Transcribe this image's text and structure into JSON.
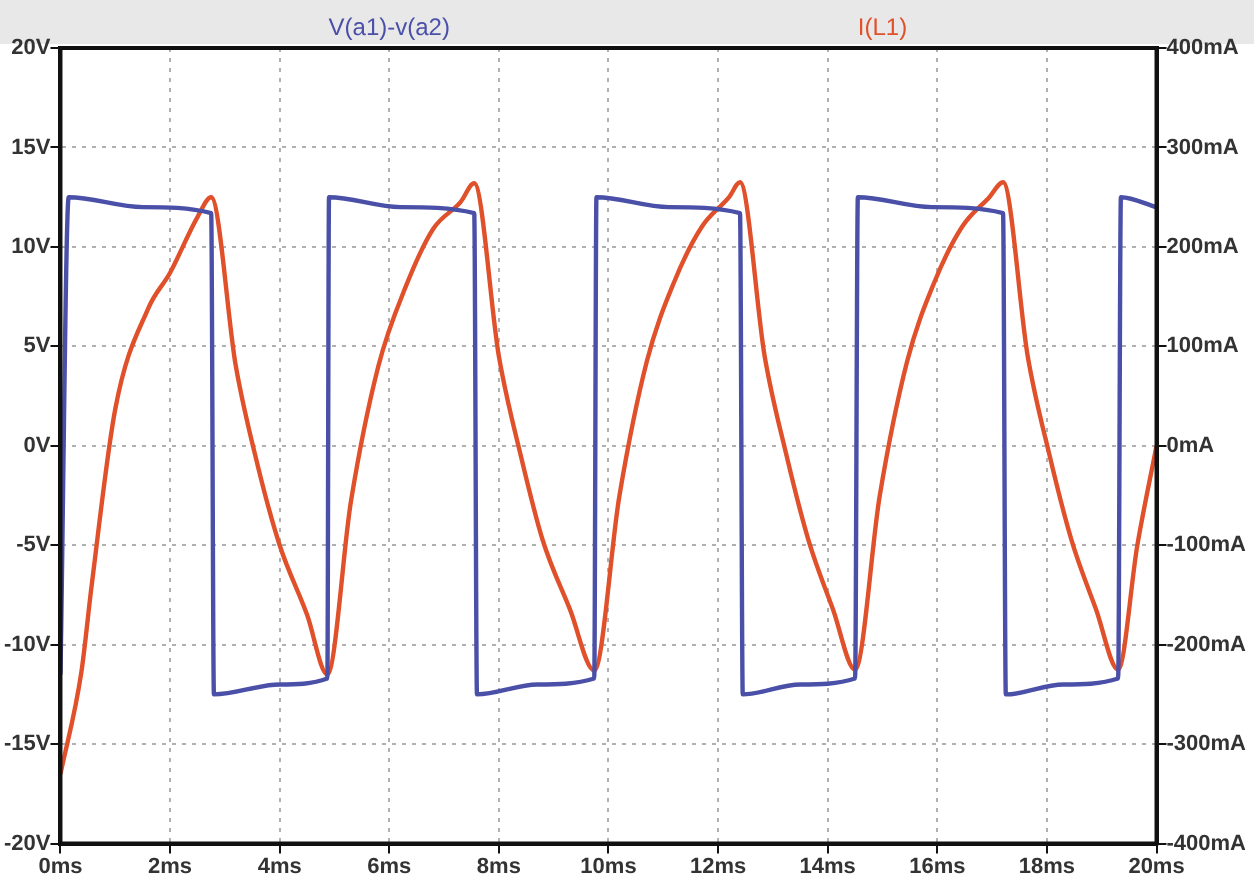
{
  "chart_data": {
    "type": "line",
    "xlim": [
      0,
      20
    ],
    "xticks": [
      {
        "value": 0,
        "label": "0ms"
      },
      {
        "value": 2,
        "label": "2ms"
      },
      {
        "value": 4,
        "label": "4ms"
      },
      {
        "value": 6,
        "label": "6ms"
      },
      {
        "value": 8,
        "label": "8ms"
      },
      {
        "value": 10,
        "label": "10ms"
      },
      {
        "value": 12,
        "label": "12ms"
      },
      {
        "value": 14,
        "label": "14ms"
      },
      {
        "value": 16,
        "label": "16ms"
      },
      {
        "value": 18,
        "label": "18ms"
      },
      {
        "value": 20,
        "label": "20ms"
      }
    ],
    "ylim": [
      -20,
      20
    ],
    "yticks": [
      {
        "value": -20,
        "label": "-20V"
      },
      {
        "value": -15,
        "label": "-15V"
      },
      {
        "value": -10,
        "label": "-10V"
      },
      {
        "value": -5,
        "label": "-5V"
      },
      {
        "value": 0,
        "label": "0V"
      },
      {
        "value": 5,
        "label": "5V"
      },
      {
        "value": 10,
        "label": "10V"
      },
      {
        "value": 15,
        "label": "15V"
      },
      {
        "value": 20,
        "label": "20V"
      }
    ],
    "y2lim": [
      -400,
      400
    ],
    "y2ticks": [
      {
        "value": -400,
        "label": "-400mA"
      },
      {
        "value": -300,
        "label": "-300mA"
      },
      {
        "value": -200,
        "label": "-200mA"
      },
      {
        "value": -100,
        "label": "-100mA"
      },
      {
        "value": 0,
        "label": "0mA"
      },
      {
        "value": 100,
        "label": "100mA"
      },
      {
        "value": 200,
        "label": "200mA"
      },
      {
        "value": 300,
        "label": "300mA"
      },
      {
        "value": 400,
        "label": "400mA"
      }
    ],
    "grid": true,
    "legend": "top",
    "marker": "none",
    "line_style": "solid",
    "series": [
      {
        "name": "V(a1)-v(a2)",
        "color": "#4a50a8",
        "x": [
          0,
          0.15,
          1.5,
          2.75,
          2.8,
          4.0,
          4.87,
          4.9,
          6.2,
          7.55,
          7.6,
          8.7,
          9.74,
          9.78,
          11.1,
          12.4,
          12.45,
          13.5,
          14.5,
          14.55,
          15.9,
          17.2,
          17.25,
          18.3,
          19.3,
          19.35,
          20
        ],
        "values": [
          -11.5,
          12.5,
          12.0,
          11.7,
          -12.5,
          -12.0,
          -11.7,
          12.5,
          12.0,
          11.7,
          -12.5,
          -12.0,
          -11.7,
          12.5,
          12.0,
          11.7,
          -12.5,
          -12.0,
          -11.7,
          12.5,
          12.0,
          11.7,
          -12.5,
          -12.0,
          -11.7,
          12.5,
          12.0
        ]
      },
      {
        "name": "I(L1)",
        "color": "#e0502a",
        "axis": "y2",
        "x": [
          0,
          0.38,
          0.57,
          1.0,
          1.6,
          2.0,
          2.5,
          2.75,
          3.2,
          3.6,
          4.0,
          4.5,
          4.87,
          5.3,
          5.8,
          6.3,
          6.8,
          7.3,
          7.55,
          8.0,
          8.4,
          8.8,
          9.3,
          9.74,
          10.2,
          10.7,
          11.2,
          11.7,
          12.2,
          12.4,
          12.85,
          13.25,
          13.65,
          14.1,
          14.5,
          14.95,
          15.45,
          15.95,
          16.45,
          16.95,
          17.2,
          17.65,
          18.05,
          18.45,
          18.9,
          19.3,
          19.65,
          20
        ],
        "values": [
          -330,
          -228,
          -140,
          37,
          138,
          174,
          230,
          250,
          80,
          -20,
          -100,
          -170,
          -230,
          -56,
          80,
          160,
          218,
          245,
          264,
          90,
          -10,
          -95,
          -165,
          -226,
          -50,
          85,
          165,
          220,
          250,
          265,
          90,
          -10,
          -95,
          -165,
          -225,
          -50,
          85,
          165,
          220,
          250,
          265,
          90,
          -10,
          -95,
          -165,
          -225,
          -100,
          0
        ]
      }
    ]
  }
}
